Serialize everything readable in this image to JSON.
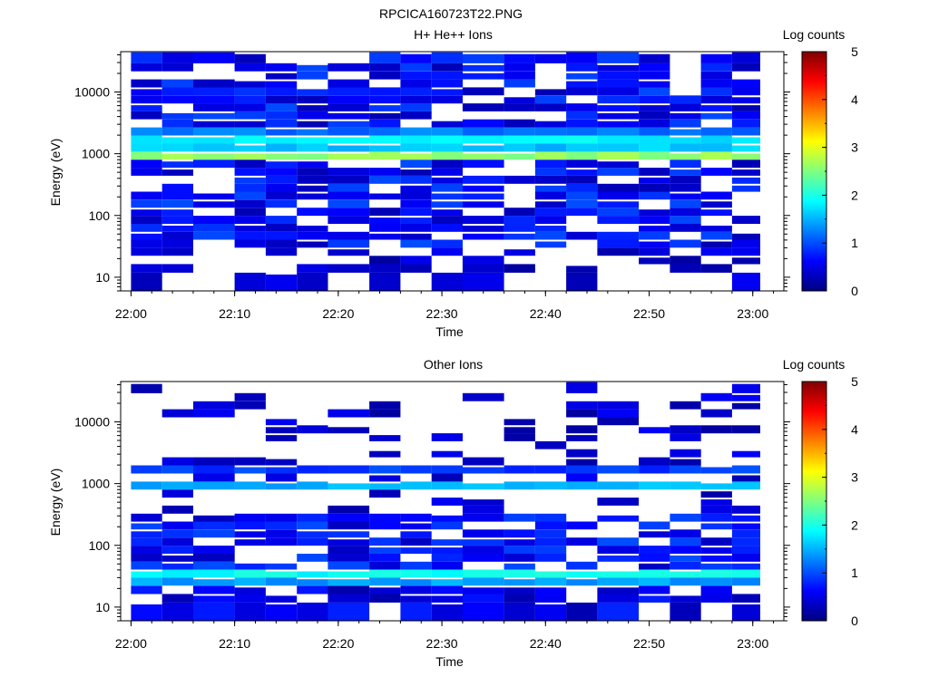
{
  "figure_title": "RPCICA160723T22.PNG",
  "colors": {
    "colormap": [
      "#00007f",
      "#0000ff",
      "#007fff",
      "#00ffff",
      "#7fff7f",
      "#ffff00",
      "#ff7f00",
      "#ff0000",
      "#7f0000"
    ],
    "background": "#ffffff",
    "axes": "#000000"
  },
  "chart_data": [
    {
      "type": "heatmap",
      "title": "H+ He++ Ions",
      "xlabel": "Time",
      "ylabel": "Energy (eV)",
      "yscale": "log",
      "ylim": [
        6,
        45000
      ],
      "xlim": [
        "21:59",
        "23:03"
      ],
      "x_ticks": [
        "22:00",
        "22:10",
        "22:20",
        "22:30",
        "22:40",
        "22:50",
        "23:00"
      ],
      "y_ticks": [
        "10",
        "100",
        "1000",
        "10000"
      ],
      "colorbar": {
        "label": "Log counts",
        "range": [
          0,
          5
        ],
        "ticks": [
          "0",
          "1",
          "2",
          "3",
          "4",
          "5"
        ]
      },
      "grid": false,
      "time_bins": [
        "22:00",
        "22:03",
        "22:06",
        "22:10",
        "22:13",
        "22:16",
        "22:19",
        "22:23",
        "22:26",
        "22:29",
        "22:32",
        "22:36",
        "22:39",
        "22:42",
        "22:45",
        "22:49",
        "22:52",
        "22:55",
        "22:58"
      ],
      "energy_bins_ev": [
        10,
        14,
        19,
        26,
        35,
        47,
        63,
        85,
        115,
        155,
        210,
        280,
        380,
        510,
        690,
        930,
        1250,
        1700,
        2300,
        3100,
        4200,
        5600,
        7600,
        10200,
        13800,
        18600,
        25000,
        34000
      ],
      "log_counts_description": "Background 0.3-1.0 above 30 eV with gaps; bright band ~2.5 near 930 eV and ~2.0 near 1700-2300 eV; sparse 0.2-0.6 below 30 eV",
      "band_peaks": [
        {
          "energy_ev": 930,
          "log_counts": 2.6
        },
        {
          "energy_ev": 1250,
          "log_counts": 1.6
        },
        {
          "energy_ev": 1700,
          "log_counts": 1.8
        },
        {
          "energy_ev": 2300,
          "log_counts": 1.2
        }
      ]
    },
    {
      "type": "heatmap",
      "title": "Other Ions",
      "xlabel": "Time",
      "ylabel": "Energy (eV)",
      "yscale": "log",
      "ylim": [
        6,
        45000
      ],
      "xlim": [
        "21:59",
        "23:03"
      ],
      "x_ticks": [
        "22:00",
        "22:10",
        "22:20",
        "22:30",
        "22:40",
        "22:50",
        "23:00"
      ],
      "y_ticks": [
        "10",
        "100",
        "1000",
        "10000"
      ],
      "colorbar": {
        "label": "Log counts",
        "range": [
          0,
          5
        ],
        "ticks": [
          "0",
          "1",
          "2",
          "3",
          "4",
          "5"
        ]
      },
      "grid": false,
      "time_bins": [
        "22:00",
        "22:03",
        "22:06",
        "22:10",
        "22:13",
        "22:16",
        "22:19",
        "22:23",
        "22:26",
        "22:29",
        "22:32",
        "22:36",
        "22:39",
        "22:42",
        "22:45",
        "22:49",
        "22:52",
        "22:55",
        "22:58"
      ],
      "energy_bins_ev": [
        10,
        14,
        19,
        26,
        35,
        47,
        63,
        85,
        115,
        155,
        210,
        280,
        380,
        510,
        690,
        930,
        1250,
        1700,
        2300,
        3100,
        4200,
        5600,
        7600,
        10200,
        13800,
        18600,
        25000,
        34000
      ],
      "log_counts_description": "Sparse 0.2-0.6 at high energy; band ~1.5 near 930 eV; dense 0.3-1.0 at 40-300 eV; band ~1.8 near 26-35 eV",
      "band_peaks": [
        {
          "energy_ev": 26,
          "log_counts": 1.4
        },
        {
          "energy_ev": 35,
          "log_counts": 1.9
        },
        {
          "energy_ev": 930,
          "log_counts": 1.5
        },
        {
          "energy_ev": 1700,
          "log_counts": 0.9
        }
      ]
    }
  ]
}
